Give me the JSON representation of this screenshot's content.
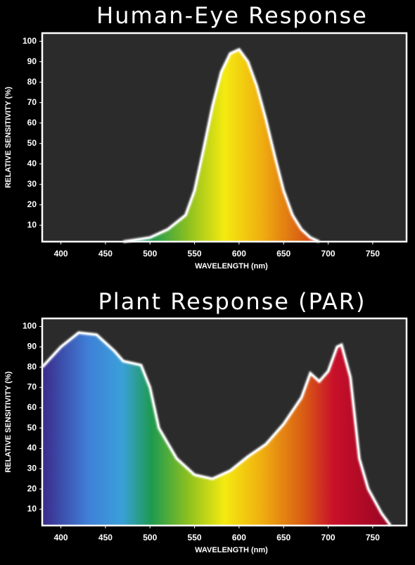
{
  "chart_data": [
    {
      "type": "area",
      "title": "Human-Eye Response",
      "x_label": "WAVELENGTH (nm)",
      "y_label": "RELATIVE  SENSITIVITY (%)",
      "x": [
        470,
        500,
        520,
        540,
        550,
        560,
        570,
        580,
        590,
        600,
        610,
        620,
        630,
        640,
        650,
        660,
        670,
        680,
        690
      ],
      "values": [
        2,
        4,
        8,
        15,
        27,
        47,
        68,
        85,
        94,
        96,
        90,
        78,
        62,
        44,
        27,
        15,
        8,
        4,
        2
      ],
      "xlim": [
        379,
        788
      ],
      "ylim": [
        2,
        104
      ],
      "xticks": [
        400,
        450,
        500,
        550,
        600,
        650,
        700,
        750
      ],
      "yticks": [
        10,
        20,
        30,
        40,
        50,
        60,
        70,
        80,
        90,
        100
      ]
    },
    {
      "type": "area",
      "title": "Plant Response (PAR)",
      "x_label": "WAVELENGTH (nm)",
      "y_label": "RELATIVE  SENSITIVITY (%)",
      "x": [
        379,
        400,
        420,
        440,
        460,
        470,
        490,
        500,
        510,
        530,
        550,
        570,
        590,
        610,
        630,
        650,
        670,
        680,
        690,
        700,
        710,
        715,
        725,
        735,
        745,
        760,
        770
      ],
      "values": [
        80,
        90,
        97,
        96,
        88,
        83,
        81,
        70,
        50,
        35,
        27,
        25,
        29,
        36,
        42,
        52,
        65,
        77,
        73,
        78,
        90,
        91,
        75,
        35,
        20,
        8,
        2
      ],
      "xlim": [
        379,
        788
      ],
      "ylim": [
        2,
        104
      ],
      "xticks": [
        400,
        450,
        500,
        550,
        600,
        650,
        700,
        750
      ],
      "yticks": [
        10,
        20,
        30,
        40,
        50,
        60,
        70,
        80,
        90,
        100
      ]
    }
  ]
}
